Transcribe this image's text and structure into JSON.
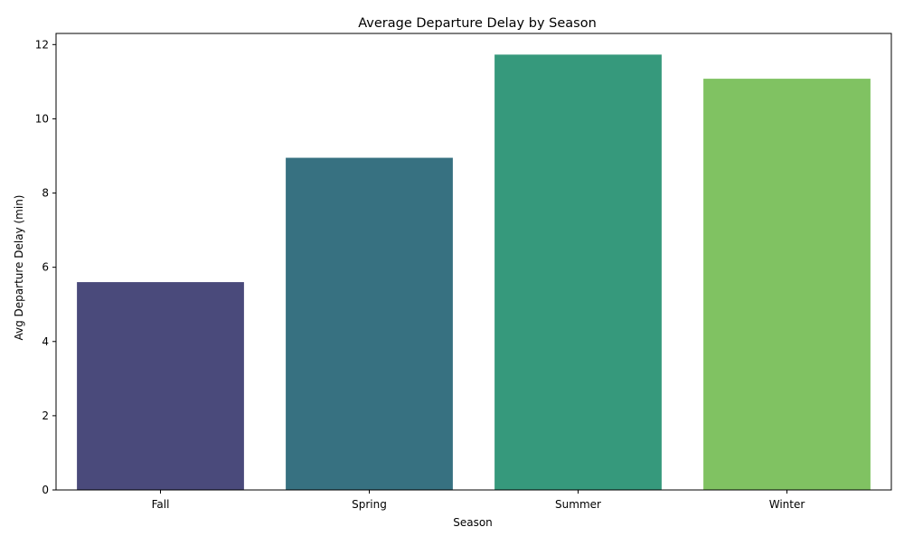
{
  "chart_data": {
    "type": "bar",
    "title": "Average Departure Delay by Season",
    "xlabel": "Season",
    "ylabel": "Avg Departure Delay (min)",
    "categories": [
      "Fall",
      "Spring",
      "Summer",
      "Winter"
    ],
    "values": [
      5.6,
      8.95,
      11.73,
      11.08
    ],
    "colors": [
      "#4a4a7b",
      "#377181",
      "#36997c",
      "#80c262"
    ],
    "ylim": [
      0,
      12.3
    ],
    "yticks": [
      0,
      2,
      4,
      6,
      8,
      10,
      12
    ],
    "grid": false,
    "legend": "none"
  }
}
